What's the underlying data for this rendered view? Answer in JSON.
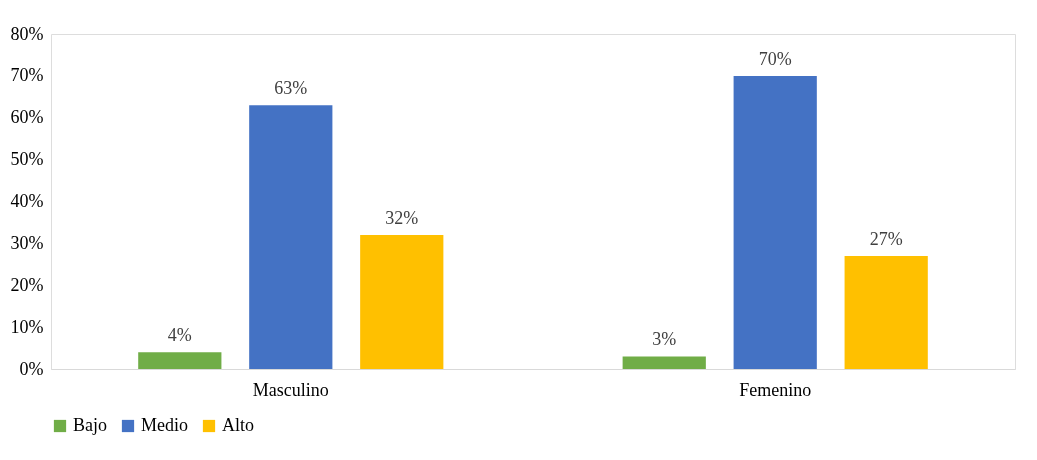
{
  "chart_data": {
    "type": "bar",
    "categories": [
      "Masculino",
      "Femenino"
    ],
    "series": [
      {
        "name": "Bajo",
        "color": "#70ad47",
        "values": [
          4,
          3
        ],
        "value_labels": [
          "4%",
          "3%"
        ]
      },
      {
        "name": "Medio",
        "color": "#4472c4",
        "values": [
          63,
          70
        ],
        "value_labels": [
          "63%",
          "70%"
        ]
      },
      {
        "name": "Alto",
        "color": "#ffc000",
        "values": [
          32,
          27
        ],
        "value_labels": [
          "32%",
          "27%"
        ]
      }
    ],
    "ylim": [
      0,
      80
    ],
    "yticks": [
      {
        "value": 0,
        "label": "0%"
      },
      {
        "value": 10,
        "label": "10%"
      },
      {
        "value": 20,
        "label": "20%"
      },
      {
        "value": 30,
        "label": "30%"
      },
      {
        "value": 40,
        "label": "40%"
      },
      {
        "value": 50,
        "label": "50%"
      },
      {
        "value": 60,
        "label": "60%"
      },
      {
        "value": 70,
        "label": "70%"
      },
      {
        "value": 80,
        "label": "80%"
      }
    ],
    "grid": false,
    "legend": "bottom"
  }
}
